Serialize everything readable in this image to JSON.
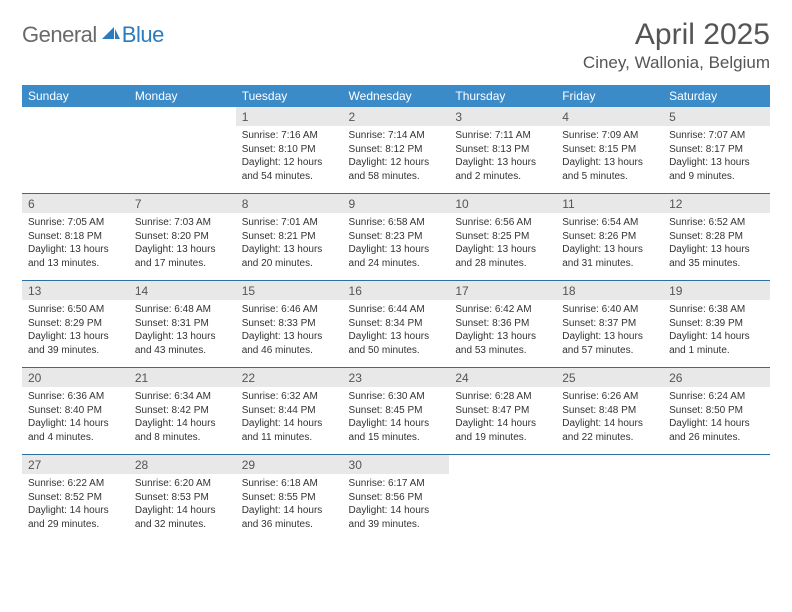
{
  "logo": {
    "general": "General",
    "blue": "Blue"
  },
  "title": "April 2025",
  "location": "Ciney, Wallonia, Belgium",
  "colors": {
    "header_bg": "#3b8bc9",
    "header_text": "#ffffff",
    "daynum_bg": "#e8e8e8",
    "rule": "#2b6fa3",
    "logo_gray": "#6a6a6a",
    "logo_blue": "#2b7bbf"
  },
  "typography": {
    "title_fontsize": 30,
    "location_fontsize": 17,
    "dow_fontsize": 12,
    "daynum_fontsize": 12,
    "detail_fontsize": 10
  },
  "dow": [
    "Sunday",
    "Monday",
    "Tuesday",
    "Wednesday",
    "Thursday",
    "Friday",
    "Saturday"
  ],
  "weeks": [
    [
      null,
      null,
      {
        "n": "1",
        "sr": "7:16 AM",
        "ss": "8:10 PM",
        "dl": "12 hours and 54 minutes."
      },
      {
        "n": "2",
        "sr": "7:14 AM",
        "ss": "8:12 PM",
        "dl": "12 hours and 58 minutes."
      },
      {
        "n": "3",
        "sr": "7:11 AM",
        "ss": "8:13 PM",
        "dl": "13 hours and 2 minutes."
      },
      {
        "n": "4",
        "sr": "7:09 AM",
        "ss": "8:15 PM",
        "dl": "13 hours and 5 minutes."
      },
      {
        "n": "5",
        "sr": "7:07 AM",
        "ss": "8:17 PM",
        "dl": "13 hours and 9 minutes."
      }
    ],
    [
      {
        "n": "6",
        "sr": "7:05 AM",
        "ss": "8:18 PM",
        "dl": "13 hours and 13 minutes."
      },
      {
        "n": "7",
        "sr": "7:03 AM",
        "ss": "8:20 PM",
        "dl": "13 hours and 17 minutes."
      },
      {
        "n": "8",
        "sr": "7:01 AM",
        "ss": "8:21 PM",
        "dl": "13 hours and 20 minutes."
      },
      {
        "n": "9",
        "sr": "6:58 AM",
        "ss": "8:23 PM",
        "dl": "13 hours and 24 minutes."
      },
      {
        "n": "10",
        "sr": "6:56 AM",
        "ss": "8:25 PM",
        "dl": "13 hours and 28 minutes."
      },
      {
        "n": "11",
        "sr": "6:54 AM",
        "ss": "8:26 PM",
        "dl": "13 hours and 31 minutes."
      },
      {
        "n": "12",
        "sr": "6:52 AM",
        "ss": "8:28 PM",
        "dl": "13 hours and 35 minutes."
      }
    ],
    [
      {
        "n": "13",
        "sr": "6:50 AM",
        "ss": "8:29 PM",
        "dl": "13 hours and 39 minutes."
      },
      {
        "n": "14",
        "sr": "6:48 AM",
        "ss": "8:31 PM",
        "dl": "13 hours and 43 minutes."
      },
      {
        "n": "15",
        "sr": "6:46 AM",
        "ss": "8:33 PM",
        "dl": "13 hours and 46 minutes."
      },
      {
        "n": "16",
        "sr": "6:44 AM",
        "ss": "8:34 PM",
        "dl": "13 hours and 50 minutes."
      },
      {
        "n": "17",
        "sr": "6:42 AM",
        "ss": "8:36 PM",
        "dl": "13 hours and 53 minutes."
      },
      {
        "n": "18",
        "sr": "6:40 AM",
        "ss": "8:37 PM",
        "dl": "13 hours and 57 minutes."
      },
      {
        "n": "19",
        "sr": "6:38 AM",
        "ss": "8:39 PM",
        "dl": "14 hours and 1 minute."
      }
    ],
    [
      {
        "n": "20",
        "sr": "6:36 AM",
        "ss": "8:40 PM",
        "dl": "14 hours and 4 minutes."
      },
      {
        "n": "21",
        "sr": "6:34 AM",
        "ss": "8:42 PM",
        "dl": "14 hours and 8 minutes."
      },
      {
        "n": "22",
        "sr": "6:32 AM",
        "ss": "8:44 PM",
        "dl": "14 hours and 11 minutes."
      },
      {
        "n": "23",
        "sr": "6:30 AM",
        "ss": "8:45 PM",
        "dl": "14 hours and 15 minutes."
      },
      {
        "n": "24",
        "sr": "6:28 AM",
        "ss": "8:47 PM",
        "dl": "14 hours and 19 minutes."
      },
      {
        "n": "25",
        "sr": "6:26 AM",
        "ss": "8:48 PM",
        "dl": "14 hours and 22 minutes."
      },
      {
        "n": "26",
        "sr": "6:24 AM",
        "ss": "8:50 PM",
        "dl": "14 hours and 26 minutes."
      }
    ],
    [
      {
        "n": "27",
        "sr": "6:22 AM",
        "ss": "8:52 PM",
        "dl": "14 hours and 29 minutes."
      },
      {
        "n": "28",
        "sr": "6:20 AM",
        "ss": "8:53 PM",
        "dl": "14 hours and 32 minutes."
      },
      {
        "n": "29",
        "sr": "6:18 AM",
        "ss": "8:55 PM",
        "dl": "14 hours and 36 minutes."
      },
      {
        "n": "30",
        "sr": "6:17 AM",
        "ss": "8:56 PM",
        "dl": "14 hours and 39 minutes."
      },
      null,
      null,
      null
    ]
  ]
}
